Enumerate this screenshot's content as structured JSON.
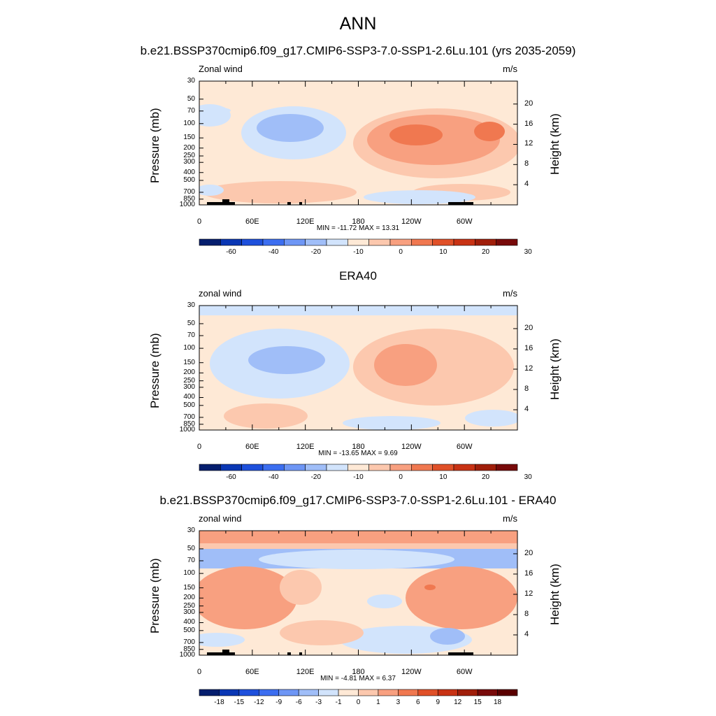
{
  "figure": {
    "title": "ANN"
  },
  "chart_data": [
    {
      "type": "heatmap",
      "title": "b.e21.BSSP370cmip6.f09_g17.CMIP6-SSP3-7.0-SSP1-2.6Lu.101 (yrs 2035-2059)",
      "left_label": "Zonal wind",
      "right_label": "m/s",
      "ylabel": "Pressure (mb)",
      "ylabel_right": "Height (km)",
      "yticks": [
        "30",
        "50",
        "70",
        "100",
        "150",
        "200",
        "250",
        "300",
        "400",
        "500",
        "700",
        "850",
        "1000"
      ],
      "yticks_right": [
        "20",
        "16",
        "12",
        "8",
        "4"
      ],
      "xticks": [
        "0",
        "60E",
        "120E",
        "180",
        "120W",
        "60W"
      ],
      "stats": "MIN = -11.72  MAX =  13.31",
      "colorbar_ticks": [
        "-60",
        "-40",
        "-20",
        "-10",
        "0",
        "10",
        "20",
        "30"
      ],
      "colorbar_colors": [
        "#051e6e",
        "#0a37b4",
        "#1e50dc",
        "#3c6ef0",
        "#6e96f5",
        "#a0bef8",
        "#d2e4fc",
        "#fee9d6",
        "#fcc8ae",
        "#f8a080",
        "#f07850",
        "#e05028",
        "#c83214",
        "#a01e0a",
        "#780a0a"
      ],
      "min": -11.72,
      "max": 13.31
    },
    {
      "type": "heatmap",
      "title": "ERA40",
      "left_label": "zonal wind",
      "right_label": "m/s",
      "ylabel": "Pressure (mb)",
      "ylabel_right": "Height (km)",
      "yticks": [
        "30",
        "50",
        "70",
        "100",
        "150",
        "200",
        "250",
        "300",
        "400",
        "500",
        "700",
        "850",
        "1000"
      ],
      "yticks_right": [
        "20",
        "16",
        "12",
        "8",
        "4"
      ],
      "xticks": [
        "0",
        "60E",
        "120E",
        "180",
        "120W",
        "60W"
      ],
      "stats": "MIN = -13.65  MAX =   9.69",
      "colorbar_ticks": [
        "-60",
        "-40",
        "-20",
        "-10",
        "0",
        "10",
        "20",
        "30"
      ],
      "colorbar_colors": [
        "#051e6e",
        "#0a37b4",
        "#1e50dc",
        "#3c6ef0",
        "#6e96f5",
        "#a0bef8",
        "#d2e4fc",
        "#fee9d6",
        "#fcc8ae",
        "#f8a080",
        "#f07850",
        "#e05028",
        "#c83214",
        "#a01e0a",
        "#780a0a"
      ],
      "min": -13.65,
      "max": 9.69
    },
    {
      "type": "heatmap",
      "title": "b.e21.BSSP370cmip6.f09_g17.CMIP6-SSP3-7.0-SSP1-2.6Lu.101 - ERA40",
      "left_label": "zonal wind",
      "right_label": "m/s",
      "ylabel": "Pressure (mb)",
      "ylabel_right": "Height (km)",
      "yticks": [
        "30",
        "50",
        "70",
        "100",
        "150",
        "200",
        "250",
        "300",
        "400",
        "500",
        "700",
        "850",
        "1000"
      ],
      "yticks_right": [
        "20",
        "16",
        "12",
        "8",
        "4"
      ],
      "xticks": [
        "0",
        "60E",
        "120E",
        "180",
        "120W",
        "60W"
      ],
      "stats": "MIN =  -4.81  MAX =   6.37",
      "colorbar_ticks": [
        "-18",
        "-15",
        "-12",
        "-9",
        "-6",
        "-3",
        "-1",
        "0",
        "1",
        "3",
        "6",
        "9",
        "12",
        "15",
        "18"
      ],
      "colorbar_colors": [
        "#051e6e",
        "#0a37b4",
        "#1e50dc",
        "#3c6ef0",
        "#6e96f5",
        "#a0bef8",
        "#d2e4fc",
        "#fee9d6",
        "#fcc8ae",
        "#f8a080",
        "#f07850",
        "#e05028",
        "#c83214",
        "#a01e0a",
        "#780a0a",
        "#5a0000"
      ],
      "min": -4.81,
      "max": 6.37
    }
  ]
}
